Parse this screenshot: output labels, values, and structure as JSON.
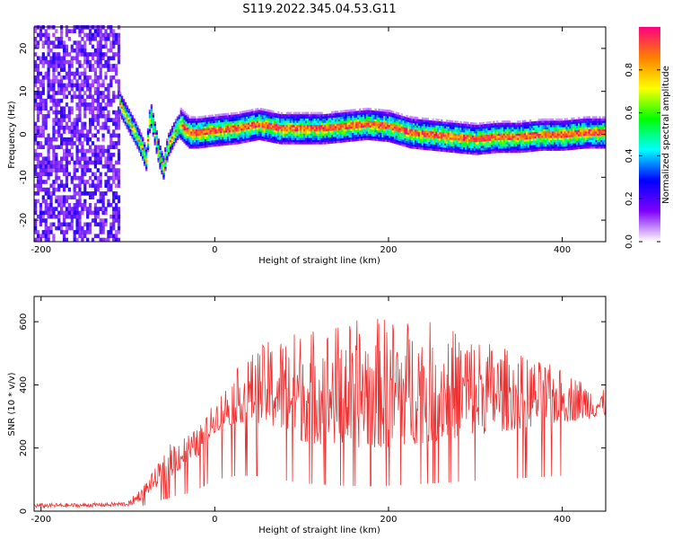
{
  "title": "S119.2022.345.04.53.G11",
  "chart_data": [
    {
      "type": "heatmap",
      "name": "spectrogram",
      "xlabel": "Height of straight line (km)",
      "ylabel": "Frequency (Hz)",
      "xlim": [
        -208,
        450
      ],
      "ylim": [
        -25,
        25
      ],
      "xticks": [
        -200,
        0,
        200,
        400
      ],
      "yticks": [
        -20,
        -10,
        0,
        10,
        20
      ],
      "colorbar": {
        "label": "Normalized spectral amplitude",
        "range": [
          0,
          1
        ],
        "ticks": [
          0.0,
          0.2,
          0.4,
          0.6,
          0.8
        ],
        "colors": [
          "#ffffff",
          "#8000ff",
          "#0000ff",
          "#00ffff",
          "#00ff00",
          "#ffff00",
          "#ff8000",
          "#ff0080"
        ]
      },
      "noise_region_x": [
        -208,
        -110
      ],
      "ridge": {
        "x": [
          -125,
          -115,
          -108,
          -100,
          -92,
          -85,
          -80,
          -75,
          -70,
          -65,
          -60,
          -55,
          -50,
          -45,
          -40,
          -30,
          -20,
          0,
          25,
          50,
          75,
          100,
          125,
          150,
          175,
          200,
          225,
          250,
          275,
          300,
          325,
          350,
          375,
          400,
          425,
          450
        ],
        "y": [
          12,
          9,
          6,
          3,
          0,
          -3,
          -6,
          5,
          0,
          -5,
          -8,
          -3,
          -1,
          1,
          2,
          0,
          0,
          0.5,
          1,
          2,
          1,
          1,
          1,
          1.5,
          2,
          1.5,
          0,
          -0.5,
          -1,
          -1.5,
          -1,
          -1,
          -0.5,
          -0.5,
          0,
          0
        ]
      }
    },
    {
      "type": "line",
      "name": "snr",
      "xlabel": "Height of straight line (km)",
      "ylabel": "SNR (10 * v/v)",
      "xlim": [
        -208,
        450
      ],
      "ylim": [
        0,
        680
      ],
      "xticks": [
        -200,
        0,
        200,
        400
      ],
      "yticks": [
        0,
        200,
        400,
        600
      ],
      "color": "#f03030",
      "envelope": {
        "x": [
          -208,
          -150,
          -100,
          -90,
          -75,
          -60,
          -50,
          -40,
          -30,
          -20,
          -10,
          0,
          25,
          50,
          75,
          100,
          150,
          200,
          250,
          300,
          350,
          400,
          450
        ],
        "base": [
          10,
          12,
          15,
          25,
          60,
          90,
          110,
          130,
          140,
          170,
          210,
          250,
          280,
          280,
          250,
          220,
          200,
          200,
          220,
          240,
          260,
          280,
          300
        ],
        "top": [
          25,
          25,
          30,
          60,
          110,
          170,
          220,
          240,
          250,
          260,
          300,
          350,
          450,
          520,
          560,
          580,
          600,
          620,
          600,
          560,
          500,
          450,
          380
        ]
      }
    }
  ]
}
